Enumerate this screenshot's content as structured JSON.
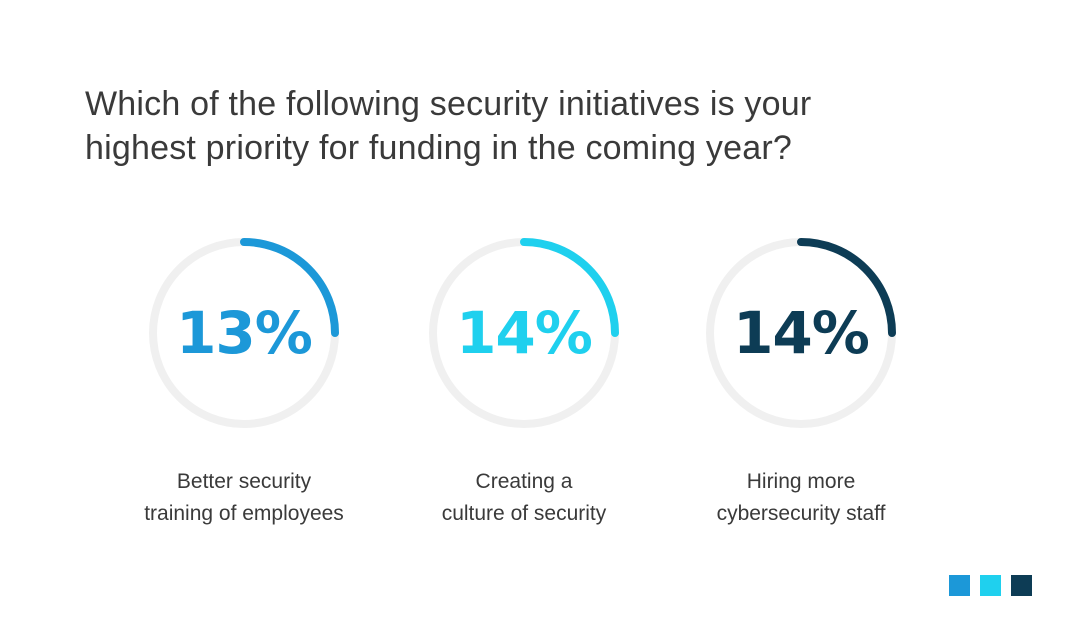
{
  "title": {
    "line1": "Which of the following security initiatives is your",
    "line2": "highest priority for funding in the coming year?"
  },
  "chart_data": {
    "type": "gauge",
    "items": [
      {
        "value_label": "13%",
        "value": 13,
        "arc_fraction": 0.25,
        "color": "#1c98d8",
        "label_lines": [
          "Better security",
          "training of employees"
        ]
      },
      {
        "value_label": "14%",
        "value": 14,
        "arc_fraction": 0.25,
        "color": "#1fd0ee",
        "label_lines": [
          "Creating a",
          "culture of security"
        ]
      },
      {
        "value_label": "14%",
        "value": 14,
        "arc_fraction": 0.25,
        "color": "#0d3c55",
        "label_lines": [
          "Hiring more",
          "cybersecurity staff"
        ]
      }
    ],
    "track_color": "#f0f0f0"
  },
  "footer": {
    "squares": [
      "#1c98d8",
      "#1fd0ee",
      "#0d3c55"
    ]
  }
}
